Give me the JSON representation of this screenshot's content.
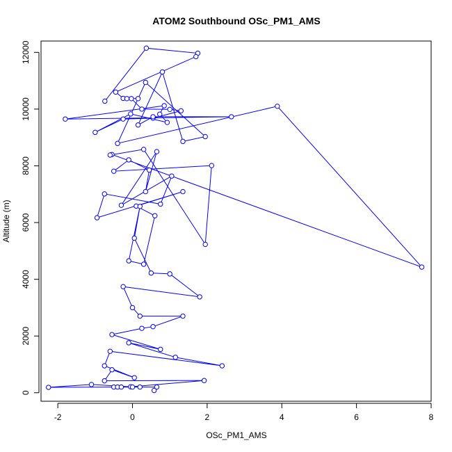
{
  "chart_data": {
    "type": "line",
    "title": "ATOM2 Southbound OSc_PM1_AMS",
    "xlabel": "OSc_PM1_AMS",
    "ylabel": "Altitude (m)",
    "xlim": [
      -2.45,
      8.0
    ],
    "ylim": [
      -300,
      12400
    ],
    "x_ticks": [
      -2,
      0,
      2,
      4,
      6,
      8
    ],
    "y_ticks": [
      0,
      2000,
      4000,
      6000,
      8000,
      10000,
      12000
    ],
    "grid": false,
    "legend": "none",
    "marker": "open-circle",
    "color": "#0000ff",
    "series": [
      {
        "x": [
          -0.74,
          0.37,
          1.75,
          1.7,
          -0.45,
          -0.25,
          -0.15,
          0.15,
          -0.03,
          0.25,
          1.0,
          1.3,
          0.55,
          -0.25,
          -1.0,
          -0.05,
          0.93,
          0.73,
          0.85,
          -1.8,
          2.65,
          0.55,
          0.15,
          0.8,
          1.35,
          1.95,
          0.35,
          -0.4,
          3.88,
          7.75,
          -0.55,
          -0.6,
          0.3,
          1.95,
          2.12,
          -0.5,
          -0.1,
          0.45,
          0.35,
          0.65,
          -0.3,
          1.05,
          0.75,
          -0.75,
          -0.95,
          1.35,
          0.1,
          0.6,
          0.3,
          -0.1,
          0.2,
          0.05,
          0.5,
          1.0,
          1.8,
          -0.25,
          0.0,
          0.2,
          1.35,
          0.55,
          0.25,
          -0.55,
          0.75,
          -0.1,
          1.15,
          2.4,
          -0.6,
          -0.75,
          0.05,
          -0.55,
          -0.75,
          1.92,
          -0.05,
          -1.1,
          -2.25,
          -0.5,
          -0.4,
          0.0,
          0.2,
          -0.3,
          0.65,
          0.58
        ],
        "y": [
          10280,
          12150,
          11970,
          11850,
          10600,
          10380,
          10370,
          10370,
          10370,
          10000,
          9990,
          9940,
          9680,
          9650,
          9180,
          9830,
          9530,
          9820,
          10120,
          9650,
          9730,
          9730,
          9440,
          11310,
          8860,
          9030,
          10940,
          8790,
          10100,
          4430,
          8400,
          8380,
          8580,
          5230,
          8010,
          7810,
          8210,
          7850,
          7090,
          8500,
          6610,
          7640,
          6650,
          7010,
          6170,
          7090,
          6580,
          6240,
          4530,
          4650,
          6570,
          5450,
          4220,
          4190,
          3380,
          3740,
          3000,
          2700,
          2700,
          2330,
          2270,
          2050,
          1530,
          1760,
          1250,
          950,
          1460,
          950,
          530,
          810,
          420,
          430,
          210,
          290,
          190,
          200,
          200,
          200,
          200,
          200,
          200,
          80
        ]
      }
    ]
  }
}
